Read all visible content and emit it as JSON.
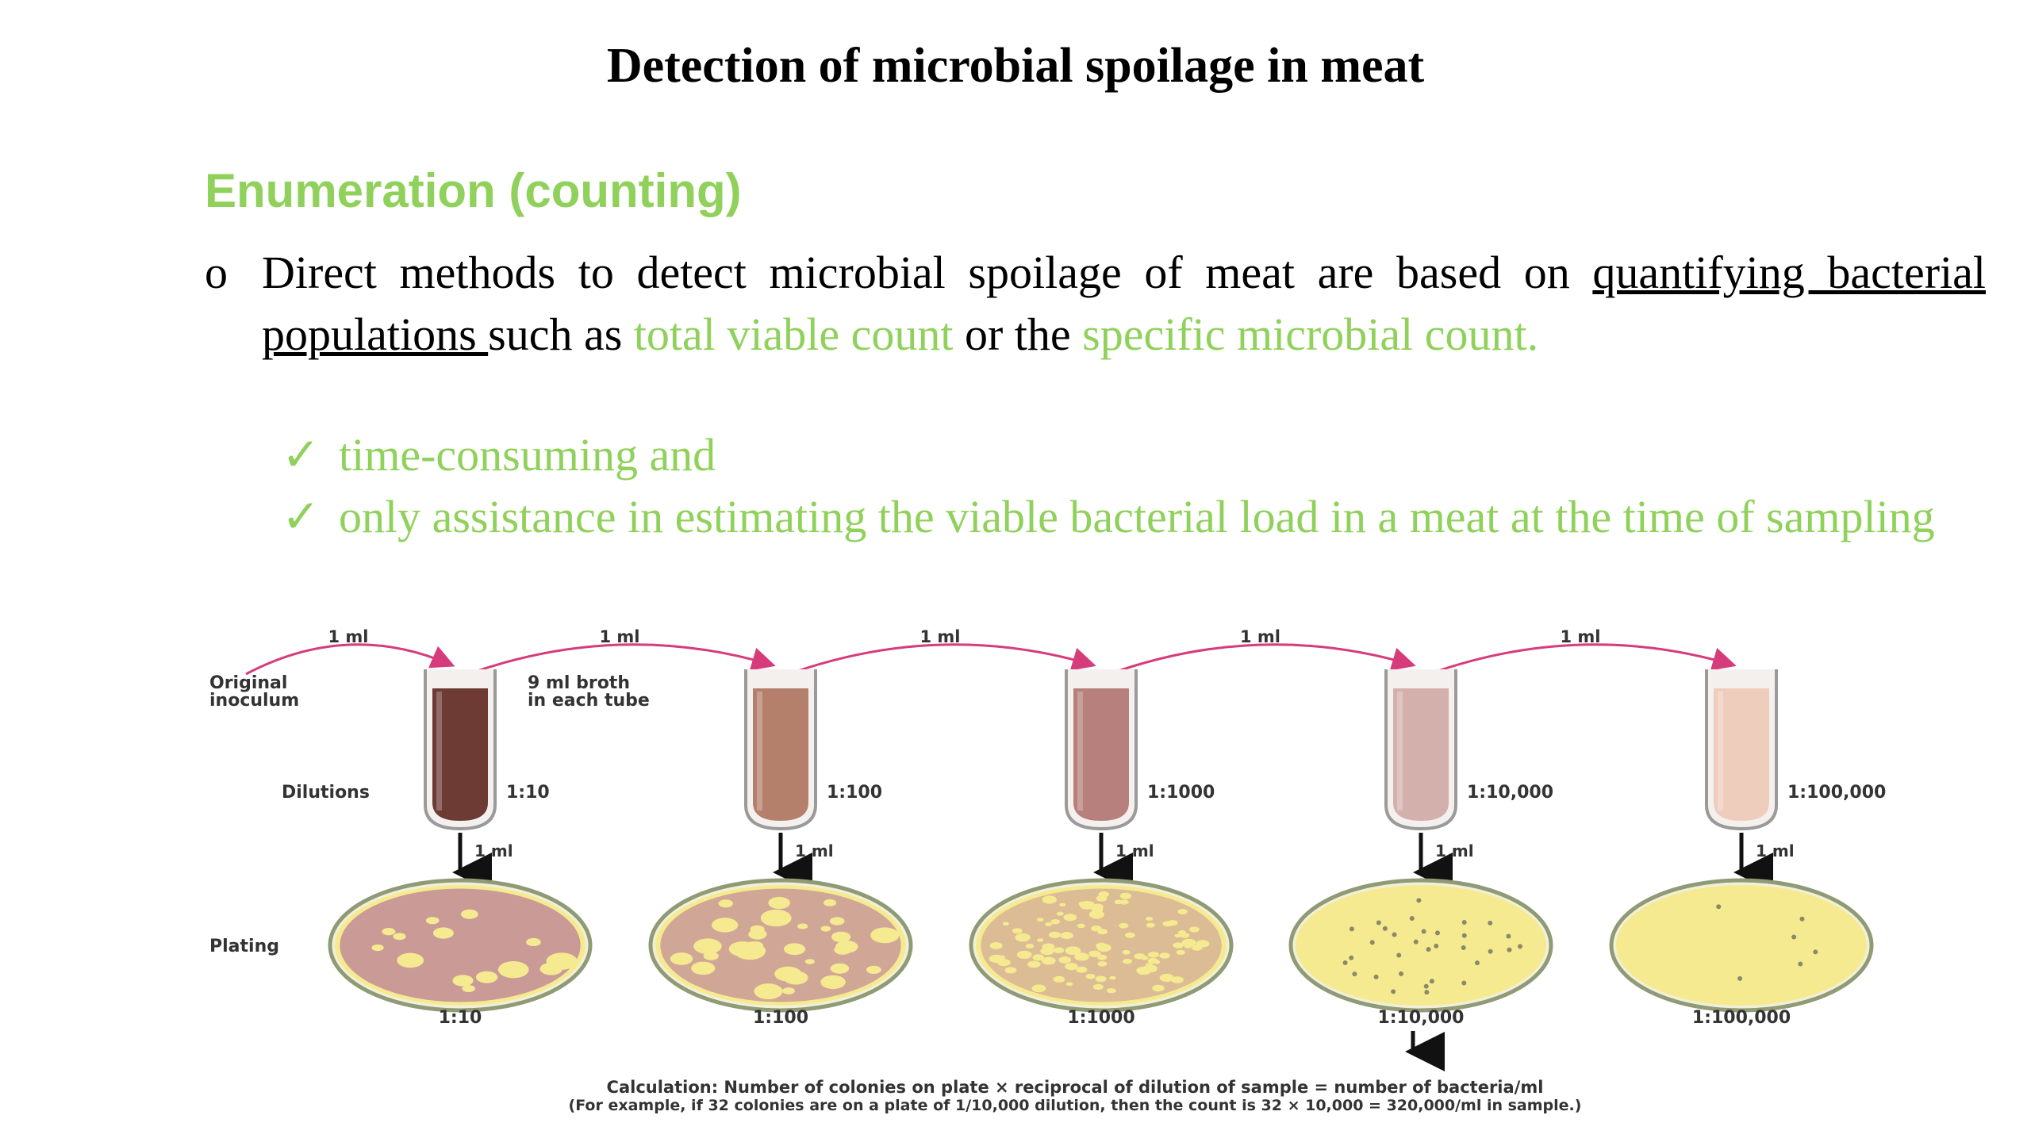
{
  "title": "Detection of microbial spoilage in meat",
  "heading": "Enumeration (counting)",
  "paragraph": {
    "bullet": "o",
    "part1": "Direct methods to detect microbial spoilage of meat are based on ",
    "underlined": "quantifying bacterial populations ",
    "part2": "such as ",
    "green1": "total viable count",
    "part3": " or the ",
    "green2": "specific microbial count."
  },
  "checks": {
    "mark": "✓",
    "items": [
      "time-consuming and",
      "only assistance in estimating the viable bacterial load in a meat at the time of sampling"
    ]
  },
  "diagram": {
    "transfer_label": "1 ml",
    "original_inoculum": [
      "Original",
      "inoculum"
    ],
    "broth_note": [
      "9 ml broth",
      "in each tube"
    ],
    "dilutions_label": "Dilutions",
    "plating_label": "Plating",
    "plate_transfer_label": "1 ml",
    "tubes": [
      {
        "dilution": "1:10",
        "plate_label": "1:10",
        "color": "#6e3b34"
      },
      {
        "dilution": "1:100",
        "plate_label": "1:100",
        "color": "#b4806c"
      },
      {
        "dilution": "1:1000",
        "plate_label": "1:1000",
        "color": "#b8807d"
      },
      {
        "dilution": "1:10,000",
        "plate_label": "1:10,000",
        "color": "#d4b0ad"
      },
      {
        "dilution": "1:100,000",
        "plate_label": "1:100,000",
        "color": "#efcdbd"
      }
    ],
    "plate_colors": {
      "colony_field": "#c79698",
      "agar": "#f5ea90",
      "rim": "#8f9b76"
    },
    "arrow_color": "#d63c7c",
    "calculation": [
      "Calculation: Number of colonies on plate × reciprocal of dilution of sample = number of bacteria/ml",
      "(For example, if 32 colonies are on a plate of 1/10,000 dilution, then the count is 32 × 10,000 = 320,000/ml in sample.)"
    ]
  }
}
